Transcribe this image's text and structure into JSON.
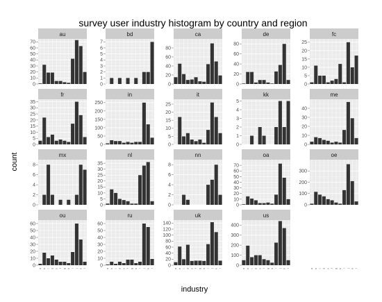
{
  "chart_data": {
    "type": "bar",
    "title": "survey user industry histogram by country and region",
    "xlabel": "industry",
    "ylabel": "count",
    "grid": true,
    "colors": {
      "panel_bg": "#ebebeb",
      "strip_bg": "#cccccc",
      "bar": "#333333",
      "grid": "#ffffff"
    },
    "categories": [
      "a",
      "b",
      "c",
      "d",
      "e",
      "f",
      "g",
      "h",
      "i",
      "j",
      "k",
      "l"
    ],
    "facets": [
      {
        "name": "au",
        "ylim": [
          0,
          75
        ],
        "yticks": [
          0,
          10,
          20,
          30,
          40,
          50,
          60,
          70
        ],
        "values": [
          1,
          32,
          19,
          19,
          5,
          5,
          3,
          2,
          42,
          73,
          63,
          20
        ]
      },
      {
        "name": "bd",
        "ylim": [
          0,
          7.5
        ],
        "yticks": [
          0,
          1,
          2,
          3,
          4,
          5,
          6,
          7
        ],
        "values": [
          0,
          1,
          0,
          1,
          0,
          1,
          0,
          1,
          0,
          2,
          2,
          7
        ]
      },
      {
        "name": "ca",
        "ylim": [
          0,
          100
        ],
        "yticks": [
          0,
          20,
          40,
          60,
          80
        ],
        "values": [
          15,
          45,
          22,
          9,
          10,
          15,
          6,
          5,
          44,
          90,
          50,
          19
        ]
      },
      {
        "name": "de",
        "ylim": [
          0,
          90
        ],
        "yticks": [
          0,
          20,
          40,
          60,
          80
        ],
        "values": [
          1,
          24,
          24,
          3,
          8,
          8,
          3,
          1,
          25,
          38,
          80,
          8
        ]
      },
      {
        "name": "fc",
        "ylim": [
          0,
          27
        ],
        "yticks": [
          0,
          5,
          10,
          15,
          20,
          25
        ],
        "values": [
          1,
          11,
          5,
          5,
          1,
          2,
          3,
          12,
          1,
          25,
          10,
          17
        ]
      },
      {
        "name": "fr",
        "ylim": [
          0,
          37
        ],
        "yticks": [
          0,
          5,
          10,
          15,
          20,
          25,
          30,
          35
        ],
        "values": [
          3,
          22,
          6,
          8,
          3,
          4,
          3,
          2,
          17,
          35,
          24,
          6
        ]
      },
      {
        "name": "in",
        "ylim": [
          0,
          270
        ],
        "yticks": [
          0,
          50,
          100,
          150,
          200,
          250
        ],
        "values": [
          6,
          25,
          20,
          20,
          10,
          15,
          10,
          15,
          15,
          250,
          120,
          40
        ]
      },
      {
        "name": "it",
        "ylim": [
          0,
          28
        ],
        "yticks": [
          0,
          5,
          10,
          15,
          20,
          25
        ],
        "values": [
          0,
          17,
          5,
          7,
          3,
          2,
          3,
          1,
          9,
          26,
          17,
          7
        ]
      },
      {
        "name": "kk",
        "ylim": [
          0,
          5.2
        ],
        "yticks": [
          0,
          1,
          2,
          3,
          4,
          5
        ],
        "values": [
          0,
          0,
          1,
          0,
          2,
          1,
          0,
          0,
          2,
          5,
          2,
          5
        ]
      },
      {
        "name": "me",
        "ylim": [
          0,
          50
        ],
        "yticks": [
          0,
          10,
          20,
          30,
          40
        ],
        "values": [
          3,
          8,
          7,
          5,
          4,
          2,
          3,
          2,
          16,
          47,
          29,
          7
        ]
      },
      {
        "name": "mx",
        "ylim": [
          0,
          9
        ],
        "yticks": [
          0,
          2,
          4,
          6,
          8
        ],
        "values": [
          0,
          2,
          8,
          2,
          0,
          1,
          0,
          1,
          0,
          2,
          8,
          7
        ]
      },
      {
        "name": "nl",
        "ylim": [
          0,
          38
        ],
        "yticks": [
          0,
          5,
          10,
          15,
          20,
          25,
          30,
          35
        ],
        "values": [
          1,
          13,
          10,
          5,
          4,
          3,
          1,
          1,
          25,
          33,
          36,
          3
        ]
      },
      {
        "name": "nn",
        "ylim": [
          0,
          9
        ],
        "yticks": [
          0,
          2,
          4,
          6,
          8
        ],
        "values": [
          0,
          0,
          2,
          1,
          0,
          0,
          0,
          0,
          4,
          5,
          8,
          2
        ]
      },
      {
        "name": "oa",
        "ylim": [
          0,
          80
        ],
        "yticks": [
          0,
          10,
          20,
          30,
          40,
          50,
          60,
          70
        ],
        "values": [
          1,
          15,
          11,
          8,
          3,
          3,
          4,
          2,
          18,
          73,
          48,
          10
        ]
      },
      {
        "name": "oe",
        "ylim": [
          0,
          400
        ],
        "yticks": [
          0,
          100,
          200,
          300
        ],
        "values": [
          10,
          115,
          90,
          75,
          50,
          40,
          20,
          10,
          130,
          360,
          210,
          30
        ]
      },
      {
        "name": "ou",
        "ylim": [
          0,
          65
        ],
        "yticks": [
          0,
          10,
          20,
          30,
          40,
          50,
          60
        ],
        "values": [
          2,
          18,
          10,
          14,
          8,
          5,
          5,
          3,
          19,
          60,
          37,
          5
        ]
      },
      {
        "name": "ru",
        "ylim": [
          0,
          65
        ],
        "yticks": [
          0,
          10,
          20,
          30,
          40,
          50,
          60
        ],
        "values": [
          1,
          5,
          2,
          5,
          3,
          8,
          8,
          3,
          5,
          60,
          55,
          9
        ]
      },
      {
        "name": "uk",
        "ylim": [
          0,
          150
        ],
        "yticks": [
          0,
          20,
          40,
          60,
          80,
          100,
          120,
          140
        ],
        "values": [
          10,
          62,
          20,
          68,
          14,
          15,
          15,
          14,
          70,
          143,
          110,
          15
        ]
      },
      {
        "name": "us",
        "ylim": [
          0,
          450
        ],
        "yticks": [
          0,
          100,
          200,
          300,
          400
        ],
        "values": [
          50,
          195,
          80,
          100,
          100,
          60,
          50,
          25,
          225,
          440,
          370,
          50
        ]
      }
    ]
  }
}
